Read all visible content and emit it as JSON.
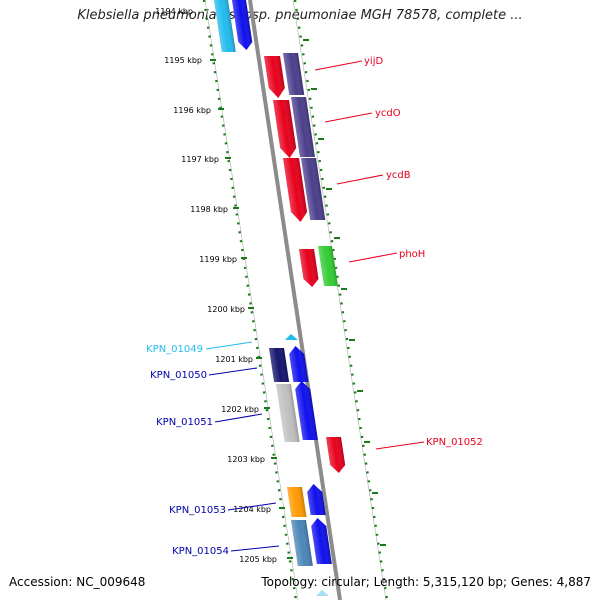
{
  "title": "Klebsiella pneumoniae subsp. pneumoniae MGH 78578, complete ...",
  "footer": {
    "accession": "Accession: NC_009648",
    "summary": "Topology: circular; Length: 5,315,120 bp; Genes: 4,887"
  },
  "ruler": {
    "ticks": [
      "1194 kbp",
      "1195 kbp",
      "1196 kbp",
      "1197 kbp",
      "1198 kbp",
      "1199 kbp",
      "1200 kbp",
      "1201 kbp",
      "1202 kbp",
      "1203 kbp",
      "1204 kbp",
      "1205 kbp"
    ]
  },
  "genes": [
    {
      "label": "yijD",
      "color": "#e8001c",
      "side": "right"
    },
    {
      "label": "ycdO",
      "color": "#e8001c",
      "side": "right"
    },
    {
      "label": "ycdB",
      "color": "#e8001c",
      "side": "right"
    },
    {
      "label": "phoH",
      "color": "#e8001c",
      "side": "right"
    },
    {
      "label": "KPN_01049",
      "color": "#22bbee",
      "side": "left"
    },
    {
      "label": "KPN_01050",
      "color": "#0000aa",
      "side": "left"
    },
    {
      "label": "KPN_01051",
      "color": "#0000aa",
      "side": "left"
    },
    {
      "label": "KPN_01052",
      "color": "#e8001c",
      "side": "right"
    },
    {
      "label": "KPN_01053",
      "color": "#0000aa",
      "side": "left"
    },
    {
      "label": "KPN_01054",
      "color": "#0000aa",
      "side": "left"
    }
  ],
  "colors": {
    "backbone": "#8c8c8c",
    "ruler": "#1a7a1a",
    "cds_red": "#e8001c",
    "cds_blue": "#1010ee",
    "cds_purple": "#4b3f8c",
    "cds_green": "#33cc33",
    "cds_navy": "#14146e",
    "cds_orange": "#ff9900",
    "cds_steel": "#4a86b8",
    "cds_grey": "#c0c0c0",
    "cds_cyan": "#22bbee"
  }
}
